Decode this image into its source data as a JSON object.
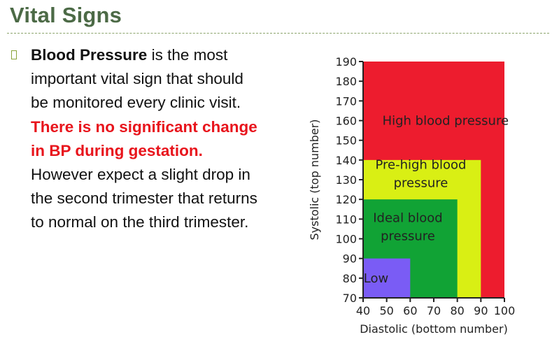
{
  "slide": {
    "title": "Vital Signs",
    "bullet": {
      "term": "Blood Pressure",
      "text1": " is the most important vital sign that should be monitored every clinic visit.  ",
      "emphasis": "There is no significant change in BP during gestation.",
      "text2": "  However expect a slight drop in the second trimester that returns to normal on the third trimester."
    }
  },
  "chart_data": {
    "type": "heatmap",
    "xlabel": "Diastolic (bottom number)",
    "ylabel": "Systolic (top number)",
    "xlim": [
      40,
      100
    ],
    "ylim": [
      70,
      190
    ],
    "xticks": [
      40,
      50,
      60,
      70,
      80,
      90,
      100
    ],
    "yticks": [
      70,
      80,
      90,
      100,
      110,
      120,
      130,
      140,
      150,
      160,
      170,
      180,
      190
    ],
    "regions": [
      {
        "label_lines": [
          "High blood pressure"
        ],
        "x_max": 100,
        "y_max": 190,
        "color": "#ed1c2e",
        "label_x": 75,
        "label_y": 160
      },
      {
        "label_lines": [
          "Pre-high blood",
          "pressure"
        ],
        "x_max": 90,
        "y_max": 140,
        "color": "#d9ef14",
        "label_x": 64.5,
        "label_y": 133
      },
      {
        "label_lines": [
          "Ideal blood",
          "pressure"
        ],
        "x_max": 80,
        "y_max": 120,
        "color": "#11a335",
        "label_x": 59,
        "label_y": 106
      },
      {
        "label_lines": [
          "Low"
        ],
        "x_max": 60,
        "y_max": 90,
        "color": "#7a5cf5",
        "label_x": 45.5,
        "label_y": 80
      }
    ]
  }
}
